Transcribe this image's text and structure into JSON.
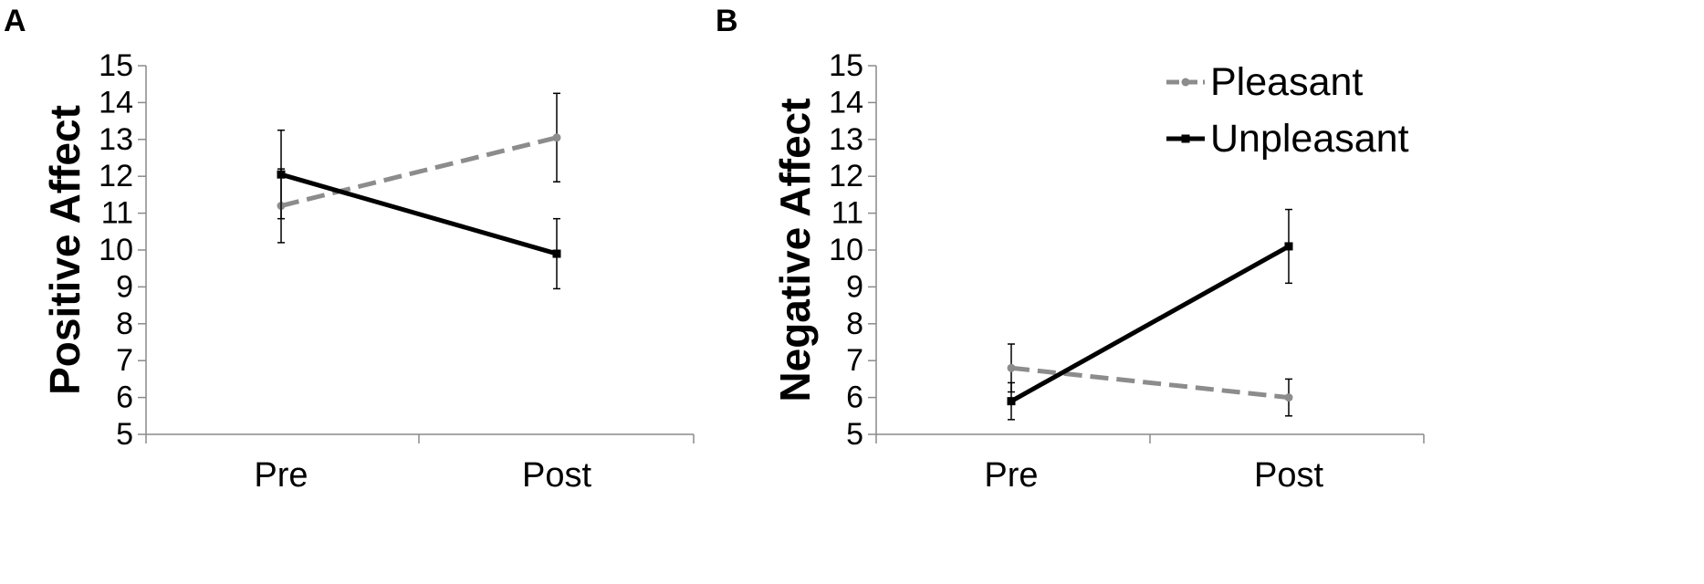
{
  "chart_data": [
    {
      "panel": "A",
      "type": "line",
      "ylabel": "Positive Affect",
      "xlabel": "",
      "categories": [
        "Pre",
        "Post"
      ],
      "ylim": [
        5,
        15
      ],
      "yticks": [
        5,
        6,
        7,
        8,
        9,
        10,
        11,
        12,
        13,
        14,
        15
      ],
      "grid": false,
      "series": [
        {
          "name": "Pleasant",
          "values": [
            11.2,
            13.05
          ],
          "err": [
            1.0,
            1.2
          ],
          "color": "#8c8c8c",
          "dashed": true,
          "marker": "circle"
        },
        {
          "name": "Unpleasant",
          "values": [
            12.05,
            9.9
          ],
          "err": [
            1.2,
            0.95
          ],
          "color": "#000000",
          "dashed": false,
          "marker": "square"
        }
      ]
    },
    {
      "panel": "B",
      "type": "line",
      "ylabel": "Negative Affect",
      "xlabel": "",
      "categories": [
        "Pre",
        "Post"
      ],
      "ylim": [
        5,
        15
      ],
      "yticks": [
        5,
        6,
        7,
        8,
        9,
        10,
        11,
        12,
        13,
        14,
        15
      ],
      "grid": false,
      "legend": {
        "position": "top-right",
        "entries": [
          "Pleasant",
          "Unpleasant"
        ]
      },
      "series": [
        {
          "name": "Pleasant",
          "values": [
            6.8,
            6.0
          ],
          "err": [
            0.65,
            0.5
          ],
          "color": "#8c8c8c",
          "dashed": true,
          "marker": "circle"
        },
        {
          "name": "Unpleasant",
          "values": [
            5.9,
            10.1
          ],
          "err": [
            0.5,
            1.0
          ],
          "color": "#000000",
          "dashed": false,
          "marker": "square"
        }
      ]
    }
  ]
}
